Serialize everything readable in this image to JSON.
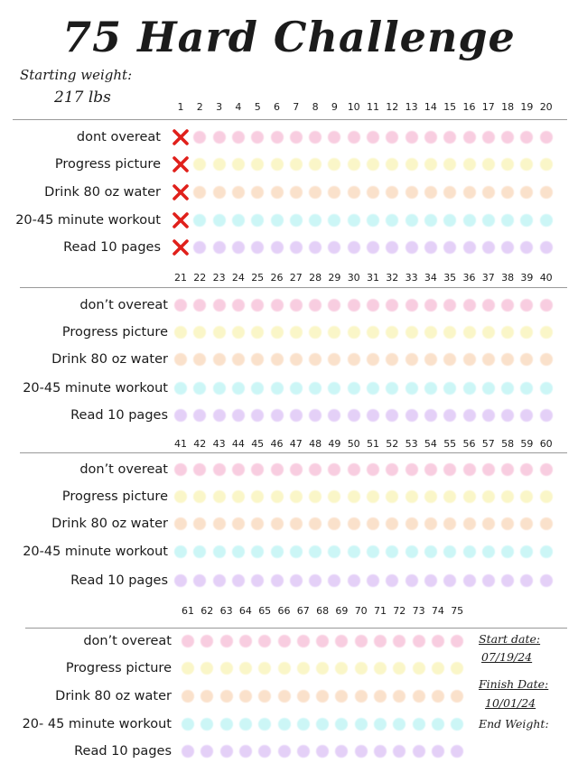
{
  "title": "75 Hard Challenge",
  "starting_weight": {
    "label": "Starting weight:",
    "value": "217 lbs"
  },
  "sections": [
    {
      "start_day": 1,
      "end_day": 20,
      "habits": [
        "dont overeat",
        "Progress picture",
        "Drink 80 oz water",
        "20-45 minute workout",
        "Read 10 pages"
      ],
      "completed_days": [
        1
      ]
    },
    {
      "start_day": 21,
      "end_day": 40,
      "habits": [
        "don’t overeat",
        "Progress picture",
        "Drink 80 oz water",
        "20-45 minute workout",
        "Read 10 pages"
      ],
      "completed_days": []
    },
    {
      "start_day": 41,
      "end_day": 60,
      "habits": [
        "don’t overeat",
        "Progress picture",
        "Drink 80 oz water",
        "20-45 minute workout",
        "Read 10 pages"
      ],
      "completed_days": []
    },
    {
      "start_day": 61,
      "end_day": 75,
      "habits": [
        "don’t overeat",
        "Progress picture",
        "Drink 80 oz water",
        "20- 45 minute workout",
        "Read 10 pages"
      ],
      "completed_days": []
    }
  ],
  "habit_colors": [
    "#f4a6c8",
    "#f7ef9c",
    "#f7c9a2",
    "#a3eff0",
    "#cfaaf2"
  ],
  "mark_color": "#e0201b",
  "side_info": {
    "start_label": "Start date:",
    "start_value": "07/19/24",
    "finish_label": "Finish Date:",
    "finish_value": "10/01/24",
    "end_label": "End Weight:"
  }
}
